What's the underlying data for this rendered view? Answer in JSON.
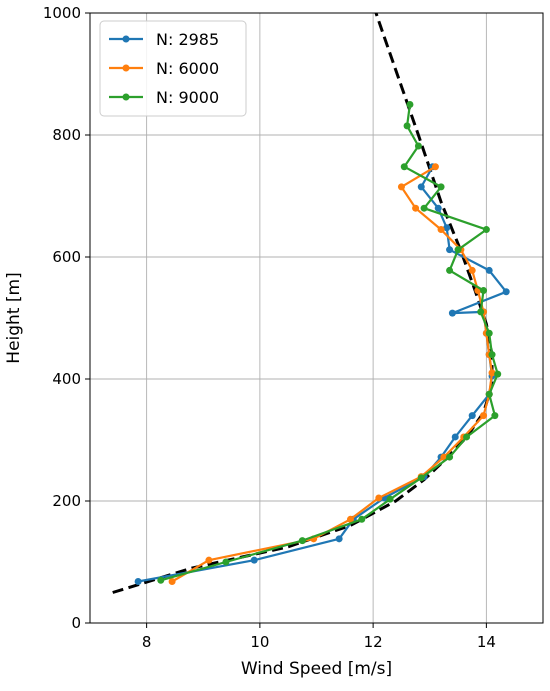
{
  "chart_data": {
    "type": "line",
    "title": "",
    "xlabel": "Wind Speed [m/s]",
    "ylabel": "Height [m]",
    "xlim": [
      7.0,
      15.0
    ],
    "ylim": [
      0,
      1000
    ],
    "xticks": [
      8,
      10,
      12,
      14
    ],
    "yticks": [
      0,
      200,
      400,
      600,
      800,
      1000
    ],
    "grid": true,
    "legend_position": "top-left",
    "series": [
      {
        "name": "N: 2985",
        "color": "#1f77b4",
        "points": [
          [
            7.85,
            68
          ],
          [
            9.9,
            103
          ],
          [
            11.4,
            138
          ],
          [
            11.65,
            170
          ],
          [
            12.2,
            205
          ],
          [
            12.9,
            240
          ],
          [
            13.2,
            272
          ],
          [
            13.45,
            305
          ],
          [
            13.75,
            340
          ],
          [
            14.05,
            375
          ],
          [
            14.1,
            405
          ],
          [
            14.05,
            440
          ],
          [
            14.0,
            475
          ],
          [
            13.95,
            510
          ],
          [
            13.4,
            508
          ],
          [
            14.35,
            543
          ],
          [
            14.05,
            578
          ],
          [
            13.35,
            612
          ],
          [
            13.3,
            648
          ],
          [
            13.15,
            680
          ],
          [
            12.85,
            715
          ],
          [
            13.05,
            748
          ]
        ],
        "values": [
          68,
          103,
          138,
          170,
          205,
          240,
          272,
          305,
          340,
          375,
          405,
          440,
          475,
          510,
          508,
          543,
          578,
          612,
          648,
          680,
          715,
          748
        ]
      },
      {
        "name": "N: 6000",
        "color": "#ff7f0e",
        "points": [
          [
            8.45,
            68
          ],
          [
            9.1,
            103
          ],
          [
            10.95,
            138
          ],
          [
            11.6,
            170
          ],
          [
            12.1,
            205
          ],
          [
            12.85,
            240
          ],
          [
            13.25,
            272
          ],
          [
            13.6,
            305
          ],
          [
            13.95,
            340
          ],
          [
            14.05,
            375
          ],
          [
            14.1,
            410
          ],
          [
            14.05,
            440
          ],
          [
            14.0,
            475
          ],
          [
            13.95,
            510
          ],
          [
            13.85,
            545
          ],
          [
            13.75,
            578
          ],
          [
            13.55,
            612
          ],
          [
            13.2,
            645
          ],
          [
            12.75,
            680
          ],
          [
            12.5,
            715
          ],
          [
            13.1,
            748
          ]
        ],
        "values": [
          68,
          103,
          138,
          170,
          205,
          240,
          272,
          305,
          340,
          375,
          410,
          440,
          475,
          510,
          545,
          578,
          612,
          645,
          680,
          715,
          748
        ]
      },
      {
        "name": "N: 9000",
        "color": "#2ca02c",
        "points": [
          [
            8.25,
            70
          ],
          [
            9.4,
            100
          ],
          [
            10.75,
            135
          ],
          [
            11.8,
            170
          ],
          [
            12.3,
            203
          ],
          [
            12.85,
            238
          ],
          [
            13.35,
            272
          ],
          [
            13.65,
            305
          ],
          [
            14.15,
            340
          ],
          [
            14.05,
            375
          ],
          [
            14.2,
            408
          ],
          [
            14.1,
            440
          ],
          [
            14.05,
            475
          ],
          [
            13.9,
            510
          ],
          [
            13.95,
            545
          ],
          [
            13.35,
            578
          ],
          [
            13.5,
            612
          ],
          [
            14.0,
            645
          ],
          [
            12.9,
            680
          ],
          [
            13.2,
            715
          ],
          [
            12.55,
            748
          ],
          [
            12.8,
            782
          ],
          [
            12.6,
            815
          ],
          [
            12.65,
            850
          ]
        ],
        "values": [
          70,
          100,
          135,
          170,
          203,
          238,
          272,
          305,
          340,
          375,
          408,
          440,
          475,
          510,
          545,
          578,
          612,
          645,
          680,
          715,
          748,
          782,
          815,
          850
        ]
      }
    ],
    "reference_curve": {
      "name": "",
      "color": "#000000",
      "style": "dashed",
      "points": [
        [
          7.4,
          50
        ],
        [
          8.8,
          90
        ],
        [
          10.5,
          125
        ],
        [
          11.6,
          160
        ],
        [
          12.4,
          200
        ],
        [
          12.9,
          235
        ],
        [
          13.3,
          270
        ],
        [
          13.65,
          305
        ],
        [
          13.95,
          345
        ],
        [
          14.1,
          390
        ],
        [
          14.1,
          440
        ],
        [
          14.0,
          490
        ],
        [
          13.8,
          545
        ],
        [
          13.55,
          610
        ],
        [
          13.2,
          690
        ],
        [
          12.8,
          800
        ],
        [
          12.5,
          880
        ],
        [
          12.2,
          960
        ],
        [
          12.05,
          1000
        ]
      ]
    }
  }
}
